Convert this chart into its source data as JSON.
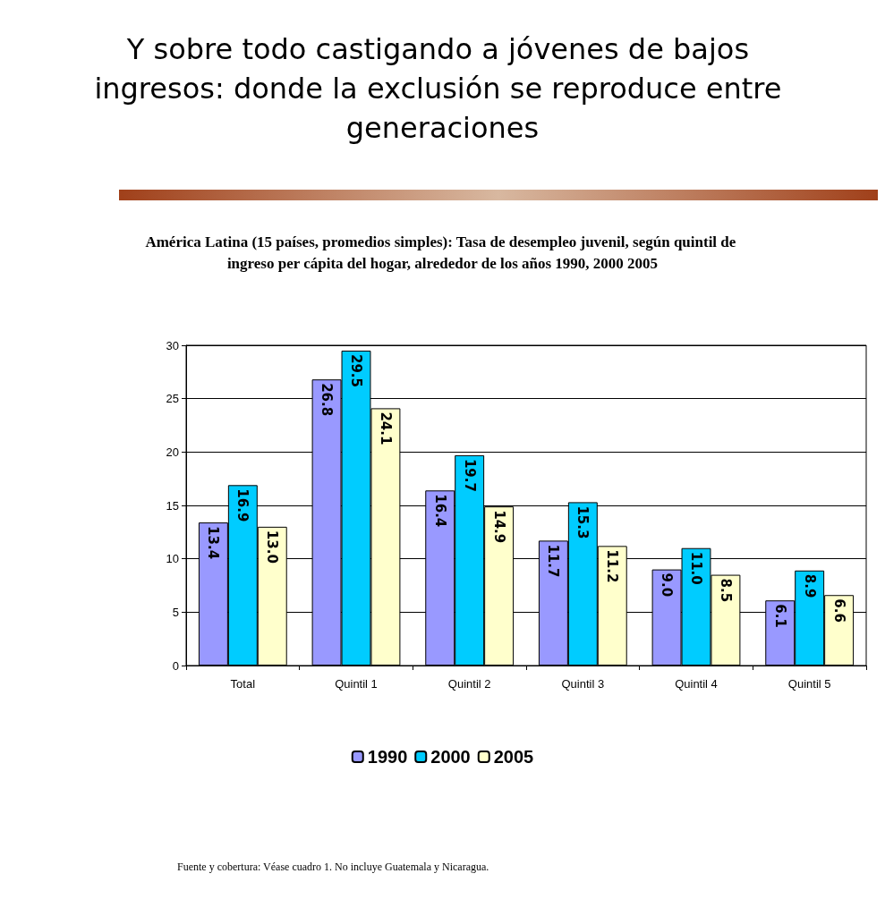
{
  "chart_data": {
    "type": "bar",
    "title": "Y sobre todo castigando a jóvenes de bajos ingresos: donde la exclusión se reproduce entre generaciones",
    "subtitle": "América Latina (15 países, promedios simples): Tasa de desempleo juvenil, según quintil de ingreso per cápita del hogar, alrededor de los años 1990, 2000 2005",
    "categories": [
      "Total",
      "Quintil 1",
      "Quintil 2",
      "Quintil 3",
      "Quintil 4",
      "Quintil 5"
    ],
    "series": [
      {
        "name": "1990",
        "color": "#9999ff",
        "values": [
          13.4,
          26.8,
          16.4,
          11.7,
          9.0,
          6.1
        ],
        "value_labels": [
          "13.4",
          "26.8",
          "16.4",
          "11.7",
          "9.0",
          "6.1"
        ]
      },
      {
        "name": "2000",
        "color": "#00ccff",
        "values": [
          16.9,
          29.5,
          19.7,
          15.3,
          11.0,
          8.9
        ],
        "value_labels": [
          "16.9",
          "29.5",
          "19.7",
          "15.3",
          "11.0",
          "8.9"
        ]
      },
      {
        "name": "2005",
        "color": "#ffffcc",
        "values": [
          13.0,
          24.1,
          14.9,
          11.2,
          8.5,
          6.6
        ],
        "value_labels": [
          "13.0",
          "24.1",
          "14.9",
          "11.2",
          "8.5",
          "6.6"
        ]
      }
    ],
    "ylim": [
      0,
      30
    ],
    "yticks": [
      0,
      5,
      10,
      15,
      20,
      25,
      30
    ],
    "grid": "y",
    "legend": "bottom",
    "annotations": [
      "Fuente y cobertura: Véase cuadro 1. No incluye Guatemala y Nicaragua."
    ]
  }
}
